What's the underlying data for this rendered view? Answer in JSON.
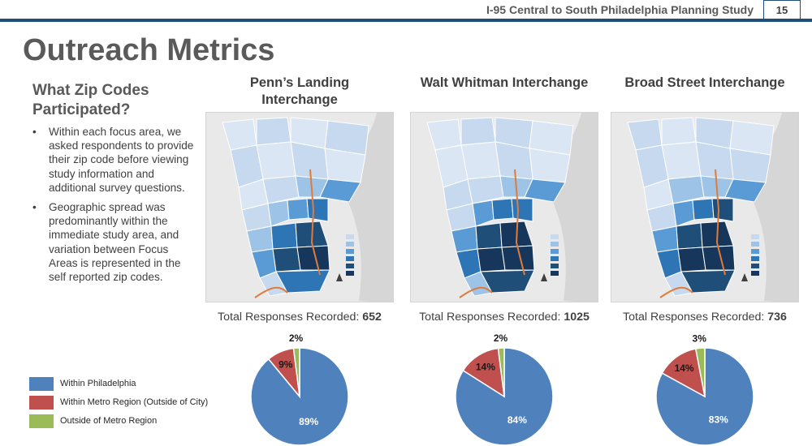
{
  "header": {
    "study_title": "I-95 Central to South Philadelphia Planning Study",
    "page_number": "15"
  },
  "slide_title": "Outreach Metrics",
  "left": {
    "heading": "What Zip Codes Participated?",
    "bullets": [
      "Within each focus area, we asked respondents to provide their zip code before viewing study information and additional survey questions.",
      "Geographic spread was predominantly within the immediate study area, and variation between Focus Areas is represented in the self reported zip codes."
    ]
  },
  "legend": [
    {
      "label": "Within Philadelphia",
      "color": "#4f81bd"
    },
    {
      "label": "Within Metro Region (Outside of City)",
      "color": "#c0504d"
    },
    {
      "label": "Outside of Metro Region",
      "color": "#9bbb59"
    }
  ],
  "panels": [
    {
      "title_line1": "Penn’s Landing",
      "title_line2": "Interchange",
      "responses_label": "Total Responses Recorded:",
      "responses_value": "652"
    },
    {
      "title_line1": "Walt Whitman Interchange",
      "title_line2": "",
      "responses_label": "Total Responses Recorded:",
      "responses_value": "1025"
    },
    {
      "title_line1": "Broad Street Interchange",
      "title_line2": "",
      "responses_label": "Total Responses Recorded:",
      "responses_value": "736"
    }
  ],
  "chart_data": [
    {
      "type": "pie",
      "categories": [
        "Within Philadelphia",
        "Within Metro Region (Outside of City)",
        "Outside of Metro Region"
      ],
      "values": [
        89,
        9,
        2
      ],
      "labels": [
        "89%",
        "9%",
        "2%"
      ],
      "colors": [
        "#4f81bd",
        "#c0504d",
        "#9bbb59"
      ]
    },
    {
      "type": "pie",
      "categories": [
        "Within Philadelphia",
        "Within Metro Region (Outside of City)",
        "Outside of Metro Region"
      ],
      "values": [
        84,
        14,
        2
      ],
      "labels": [
        "84%",
        "14%",
        "2%"
      ],
      "colors": [
        "#4f81bd",
        "#c0504d",
        "#9bbb59"
      ]
    },
    {
      "type": "pie",
      "categories": [
        "Within Philadelphia",
        "Within Metro Region (Outside of City)",
        "Outside of Metro Region"
      ],
      "values": [
        83,
        14,
        3
      ],
      "labels": [
        "83%",
        "14%",
        "3%"
      ],
      "colors": [
        "#4f81bd",
        "#c0504d",
        "#9bbb59"
      ]
    }
  ]
}
